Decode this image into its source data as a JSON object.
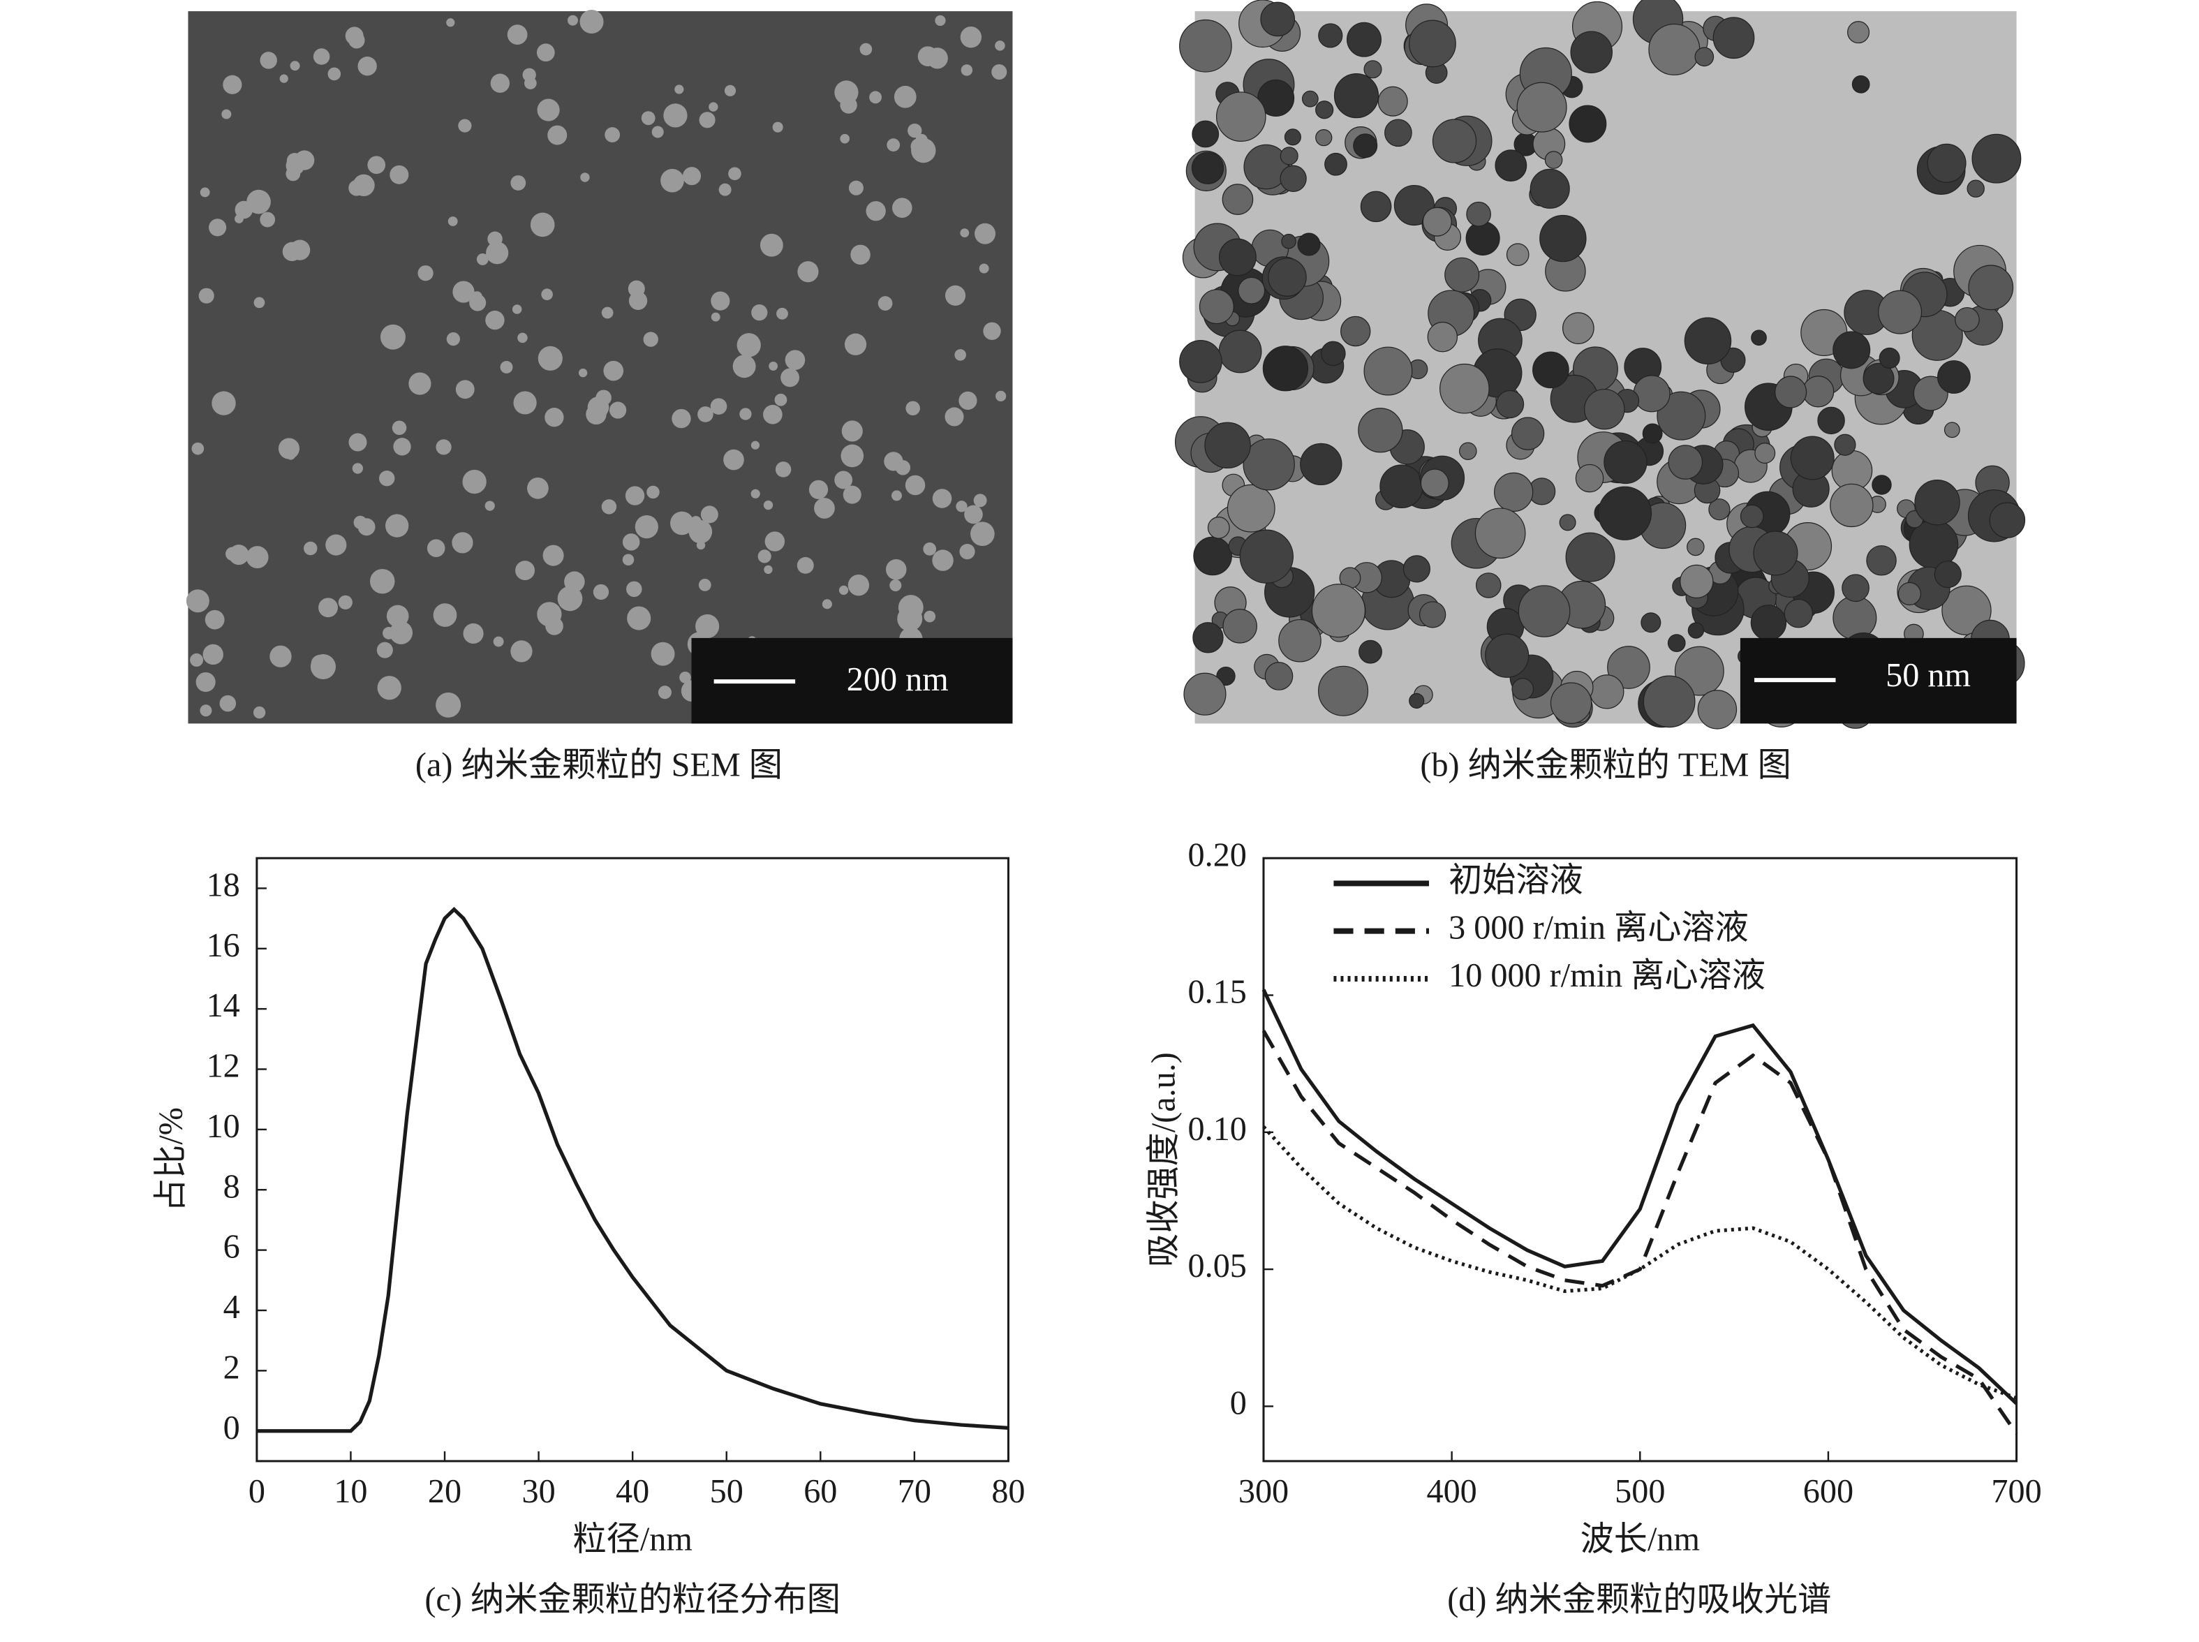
{
  "images": [
    {
      "caption": "(a) 纳米金颗粒的 SEM 图",
      "scale_bar": "200 nm"
    },
    {
      "caption": "(b) 纳米金颗粒的 TEM 图",
      "scale_bar": "50 nm"
    }
  ],
  "chart_data": [
    {
      "type": "line",
      "caption": "(c) 纳米金颗粒的粒径分布图",
      "x_label": "粒径/nm",
      "y_label": "占比/%",
      "x": [
        0,
        10,
        11,
        12,
        13,
        14,
        15,
        16,
        17,
        18,
        19,
        20,
        21,
        22,
        24,
        26,
        28,
        30,
        32,
        34,
        36,
        38,
        40,
        44,
        48,
        50,
        55,
        60,
        65,
        70,
        75,
        80
      ],
      "values": [
        0,
        0,
        0.3,
        1,
        2.5,
        4.5,
        7.5,
        10.5,
        13,
        15.5,
        16.3,
        17,
        17.3,
        17,
        16,
        14.3,
        12.5,
        11.2,
        9.5,
        8.2,
        7,
        6,
        5.1,
        3.5,
        2.5,
        2.0,
        1.4,
        0.9,
        0.6,
        0.35,
        0.2,
        0.1
      ],
      "color": "#1a1a1a",
      "xlim": [
        0,
        80
      ],
      "xticks": [
        0,
        10,
        20,
        30,
        40,
        50,
        60,
        70,
        80
      ],
      "ylim": [
        -1,
        19
      ],
      "yticks": [
        0,
        2,
        4,
        6,
        8,
        10,
        12,
        14,
        16,
        18
      ]
    },
    {
      "type": "line",
      "caption": "(d) 纳米金颗粒的吸收光谱",
      "x_label": "波长/nm",
      "y_label": "吸收强度/(a.u.)",
      "x": [
        300,
        320,
        340,
        360,
        380,
        400,
        420,
        440,
        460,
        480,
        500,
        520,
        540,
        560,
        580,
        600,
        620,
        640,
        660,
        680,
        700
      ],
      "series": [
        {
          "name": "初始溶液",
          "color": "#1a1a1a",
          "style": "solid",
          "values": [
            0.152,
            0.123,
            0.104,
            0.093,
            0.083,
            0.074,
            0.065,
            0.057,
            0.051,
            0.053,
            0.072,
            0.11,
            0.135,
            0.139,
            0.122,
            0.09,
            0.055,
            0.035,
            0.024,
            0.014,
            0.001
          ]
        },
        {
          "name": "3 000 r/min 离心溶液",
          "color": "#1a1a1a",
          "style": "dashed",
          "values": [
            0.137,
            0.113,
            0.096,
            0.087,
            0.078,
            0.068,
            0.059,
            0.051,
            0.046,
            0.044,
            0.05,
            0.085,
            0.118,
            0.128,
            0.118,
            0.09,
            0.05,
            0.028,
            0.018,
            0.01,
            -0.01
          ]
        },
        {
          "name": "10 000 r/min 离心溶液",
          "color": "#1a1a1a",
          "style": "dotted",
          "values": [
            0.102,
            0.087,
            0.074,
            0.065,
            0.058,
            0.053,
            0.049,
            0.046,
            0.042,
            0.043,
            0.05,
            0.059,
            0.064,
            0.065,
            0.06,
            0.05,
            0.038,
            0.025,
            0.015,
            0.008,
            0.003
          ]
        }
      ],
      "legend": "upper left",
      "xlim": [
        300,
        700
      ],
      "xticks": [
        300,
        400,
        500,
        600,
        700
      ],
      "ylim": [
        -0.02,
        0.2
      ],
      "yticks": [
        0,
        0.05,
        {
          "value": 0.1,
          "label": "0.10"
        },
        0.15,
        {
          "value": 0.2,
          "label": "0.20"
        }
      ]
    }
  ]
}
